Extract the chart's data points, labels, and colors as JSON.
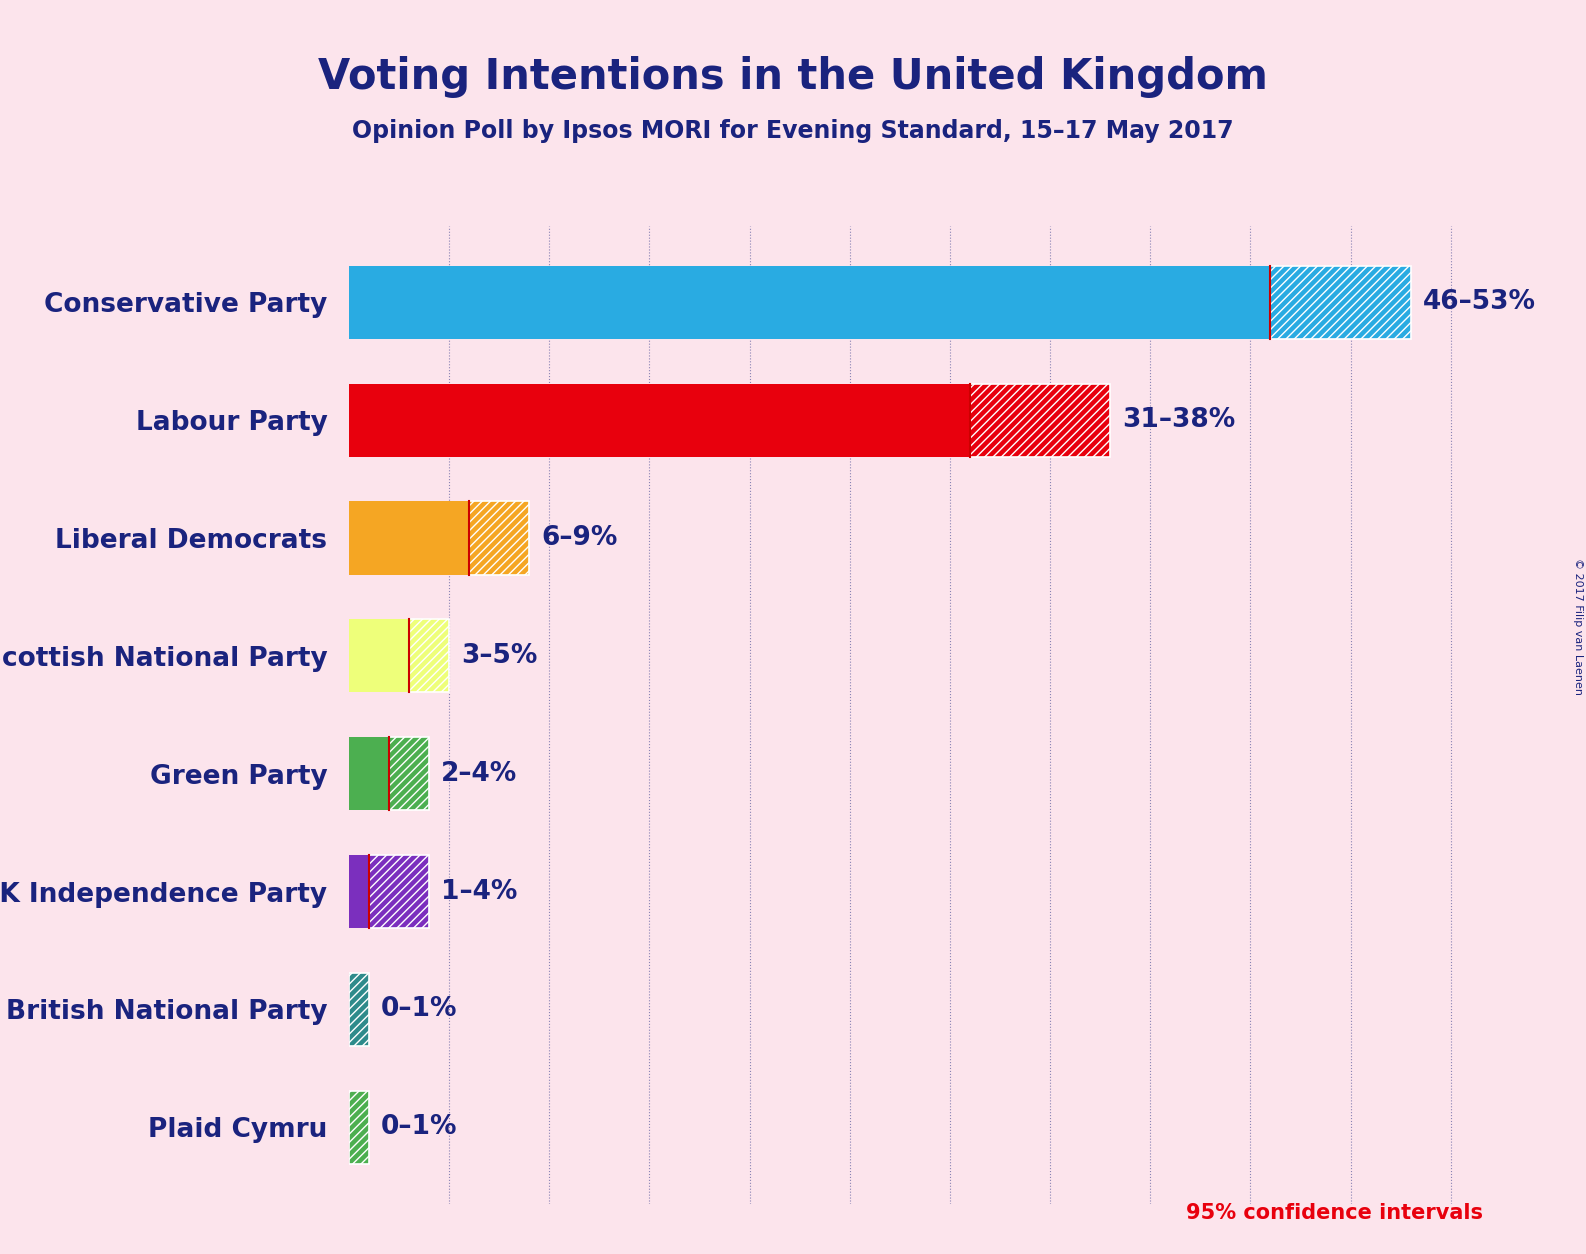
{
  "title": "Voting Intentions in the United Kingdom",
  "subtitle": "Opinion Poll by Ipsos MORI for Evening Standard, 15–17 May 2017",
  "copyright": "© 2017 Filip van Laenen",
  "background_color": "#fce4ec",
  "text_color": "#1a237e",
  "confidence_note": "95% confidence intervals",
  "confidence_note_color": "#E8000D",
  "parties": [
    {
      "name": "Conservative Party",
      "low": 46,
      "high": 53,
      "color": "#29ABE2",
      "hatch_color": "white"
    },
    {
      "name": "Labour Party",
      "low": 31,
      "high": 38,
      "color": "#E8000D",
      "hatch_color": "white"
    },
    {
      "name": "Liberal Democrats",
      "low": 6,
      "high": 9,
      "color": "#F5A623",
      "hatch_color": "white"
    },
    {
      "name": "Scottish National Party",
      "low": 3,
      "high": 5,
      "color": "#EEFF7A",
      "hatch_color": "white"
    },
    {
      "name": "Green Party",
      "low": 2,
      "high": 4,
      "color": "#4CAF50",
      "hatch_color": "white"
    },
    {
      "name": "UK Independence Party",
      "low": 1,
      "high": 4,
      "color": "#7B2FBE",
      "hatch_color": "white"
    },
    {
      "name": "British National Party",
      "low": 0,
      "high": 1,
      "color": "#2E8B8B",
      "hatch_color": "white"
    },
    {
      "name": "Plaid Cymru",
      "low": 0,
      "high": 1,
      "color": "#4CAF50",
      "hatch_color": "white"
    }
  ],
  "xlim": [
    0,
    57
  ],
  "label_fontsize": 19,
  "title_fontsize": 30,
  "subtitle_fontsize": 17,
  "bar_height": 0.62,
  "grid_color": "#1a237e",
  "grid_alpha": 0.5,
  "grid_step": 5
}
